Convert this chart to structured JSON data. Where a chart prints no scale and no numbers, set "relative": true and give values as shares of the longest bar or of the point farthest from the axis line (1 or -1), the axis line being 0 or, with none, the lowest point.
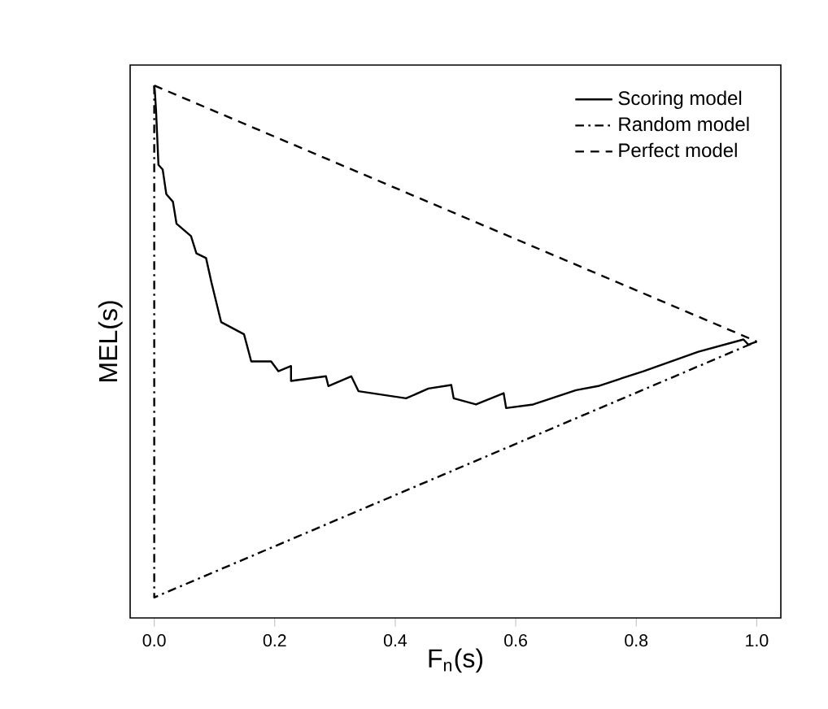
{
  "chart_data": {
    "type": "line",
    "xlabel": "F$_{n}$(s)",
    "ylabel": "MEL(s)",
    "relative": true,
    "xlim": [
      -0.04,
      1.04
    ],
    "xticks": [
      {
        "value": 0,
        "label": "0.0"
      },
      0.2,
      0.4,
      0.6,
      0.8,
      {
        "value": 1,
        "label": "1.0"
      }
    ],
    "tick_labels": "x",
    "legend": "top right",
    "series": [
      {
        "name": "Scoring model",
        "color": "#000000",
        "line_style": "solid",
        "x": [
          0,
          0.001,
          0.003,
          0.007,
          0.014,
          0.02,
          0.031,
          0.037,
          0.061,
          0.07,
          0.086,
          0.095,
          0.111,
          0.149,
          0.161,
          0.194,
          0.206,
          0.227,
          0.227,
          0.285,
          0.289,
          0.327,
          0.339,
          0.418,
          0.455,
          0.493,
          0.497,
          0.534,
          0.58,
          0.584,
          0.629,
          0.7,
          0.737,
          0.812,
          0.903,
          0.978,
          0.986,
          1.0
        ],
        "values": [
          1,
          0.989,
          0.951,
          0.845,
          0.836,
          0.788,
          0.773,
          0.73,
          0.706,
          0.672,
          0.663,
          0.615,
          0.538,
          0.514,
          0.461,
          0.461,
          0.442,
          0.452,
          0.423,
          0.432,
          0.413,
          0.432,
          0.403,
          0.389,
          0.408,
          0.415,
          0.389,
          0.377,
          0.399,
          0.37,
          0.377,
          0.405,
          0.413,
          0.442,
          0.48,
          0.504,
          0.494,
          0.5
        ]
      },
      {
        "name": "Random model",
        "color": "#000000",
        "line_style": "dashdot",
        "x": [
          0,
          0,
          1
        ],
        "values": [
          1,
          0,
          0.5
        ]
      },
      {
        "name": "Perfect model",
        "color": "#000000",
        "line_style": "dashed",
        "x": [
          0,
          1
        ],
        "values": [
          1,
          0.5
        ]
      }
    ]
  }
}
